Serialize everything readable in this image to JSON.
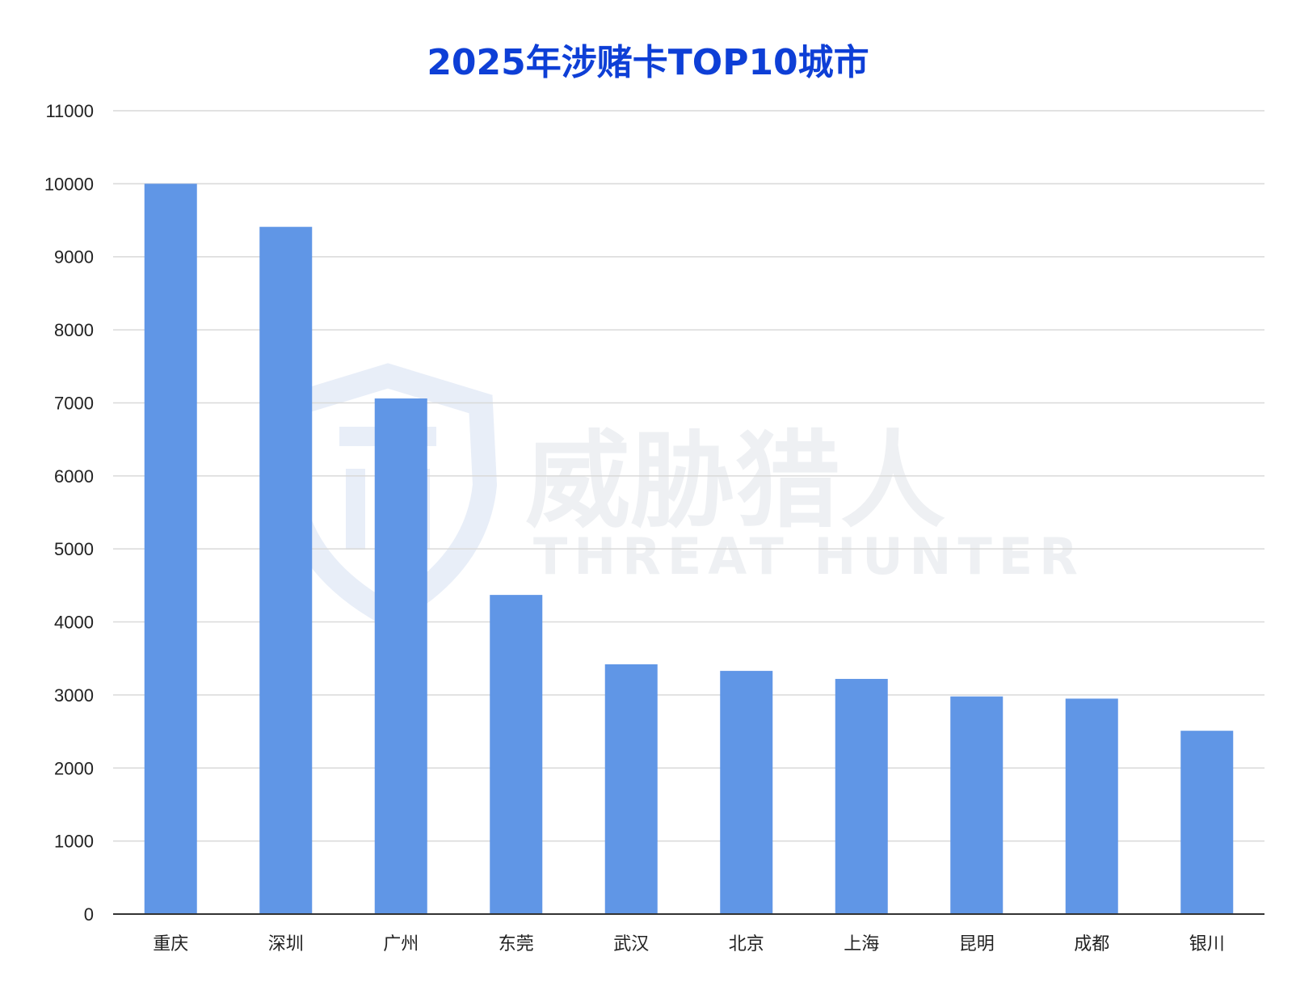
{
  "chart_data": {
    "type": "bar",
    "title": "2025年涉赌卡TOP10城市",
    "categories": [
      "重庆",
      "深圳",
      "广州",
      "东莞",
      "武汉",
      "北京",
      "上海",
      "昆明",
      "成都",
      "银川"
    ],
    "series": [
      {
        "values": [
          10000,
          9410,
          7060,
          4370,
          3420,
          3330,
          3220,
          2980,
          2950,
          2510
        ]
      }
    ],
    "ylim": [
      0,
      11000
    ],
    "yticks": [
      0,
      1000,
      2000,
      3000,
      4000,
      5000,
      6000,
      7000,
      8000,
      9000,
      10000,
      11000
    ],
    "xlabel": "",
    "ylabel": "",
    "grid": true,
    "legend": "none"
  },
  "watermark": {
    "cn": "威胁猎人",
    "en": "THREAT HUNTER",
    "icon": "shield-icon"
  },
  "colors": {
    "bar": "#6096e6",
    "title": "#0e3fd6",
    "watermark": "#eef0f3",
    "shield": "#e8eef8"
  }
}
